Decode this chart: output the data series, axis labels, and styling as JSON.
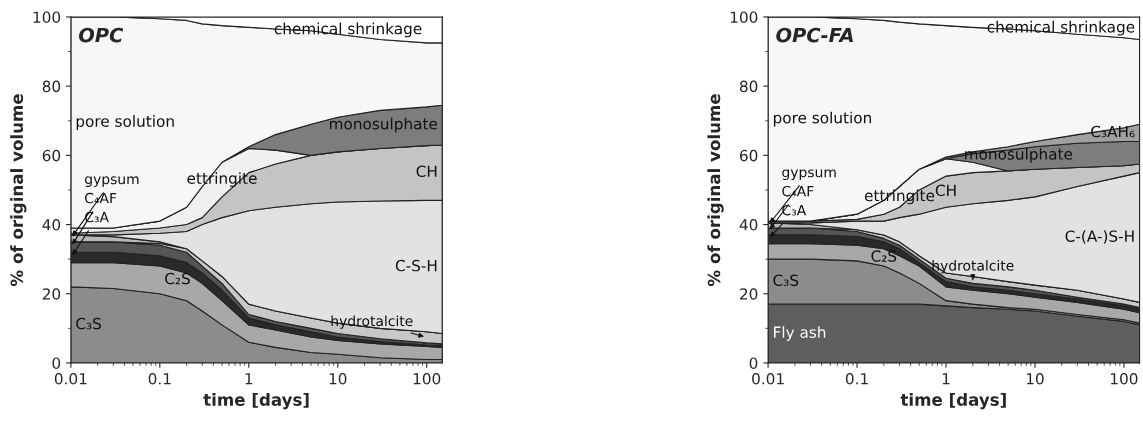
{
  "chart_data": [
    {
      "type": "area",
      "stacked": true,
      "title": "OPC",
      "xlabel": "time [days]",
      "ylabel": "% of original volume",
      "log": "x",
      "x": [
        0.01,
        0.03,
        0.1,
        0.2,
        0.3,
        0.5,
        1,
        2,
        5,
        10,
        30,
        100,
        150
      ],
      "xlim": [
        0.01,
        150
      ],
      "xticks": [
        0.01,
        0.1,
        1,
        10,
        100
      ],
      "ylim": [
        0,
        100
      ],
      "yticks": [
        0,
        20,
        40,
        60,
        80,
        100
      ],
      "series": [
        {
          "name": "C₃S",
          "color": "#8c8c8c",
          "values": [
            22,
            21.5,
            20,
            18,
            15,
            11,
            6,
            4.5,
            3,
            2.5,
            1.5,
            1,
            1
          ]
        },
        {
          "name": "C₂S",
          "color": "#a8a8a8",
          "values": [
            7,
            7.5,
            8,
            8,
            8,
            7,
            5,
            5,
            4.5,
            4,
            4,
            3.8,
            3.5
          ]
        },
        {
          "name": "C₃A",
          "color": "#2a2a2a",
          "values": [
            3,
            3,
            3,
            3,
            3,
            3,
            2,
            1.5,
            1.5,
            1,
            0.7,
            0.4,
            0.5
          ]
        },
        {
          "name": "C₄AF",
          "color": "#555555",
          "values": [
            3,
            3,
            3,
            3,
            2,
            2,
            1,
            1,
            1,
            1,
            0.8,
            0.6,
            0.5
          ]
        },
        {
          "name": "hydrotalcite",
          "color": "#c8c8c8",
          "values": [
            0,
            0,
            0.5,
            1,
            1.5,
            2,
            3,
            3,
            3,
            3,
            3,
            3.2,
            3
          ]
        },
        {
          "name": "gypsum",
          "color": "#b8b8b8",
          "values": [
            2,
            1.5,
            0.5,
            0,
            0,
            0,
            0,
            0,
            0,
            0,
            0,
            0,
            0
          ]
        },
        {
          "name": "C-S-H",
          "color": "#e2e2e2",
          "values": [
            0,
            0.5,
            2.5,
            5,
            10.5,
            17,
            27,
            30,
            33,
            35,
            36.8,
            38,
            38.5
          ]
        },
        {
          "name": "CH",
          "color": "#c4c4c4",
          "values": [
            0.5,
            1,
            1.5,
            2,
            2,
            6,
            11,
            12.5,
            14,
            14.5,
            15.2,
            15.8,
            16
          ]
        },
        {
          "name": "ettringite",
          "color": "#f0f0f0",
          "values": [
            1.5,
            1,
            2,
            5,
            9,
            10,
            7,
            4,
            0,
            0,
            0,
            0,
            0
          ]
        },
        {
          "name": "monosulphate",
          "color": "#7d7d7d",
          "values": [
            0,
            0,
            0,
            0,
            0,
            0,
            0.5,
            4.5,
            9,
            10,
            11,
            11.2,
            11.5
          ]
        },
        {
          "name": "pore solution",
          "color": "#f7f7f7",
          "values": [
            61,
            61,
            58.5,
            54,
            47,
            39.5,
            34.5,
            30.5,
            27,
            24,
            20.5,
            18.5,
            18
          ]
        },
        {
          "name": "chemical shrinkage",
          "color": "#ffffff",
          "values": [
            0,
            0,
            0.5,
            1,
            2,
            2.5,
            3,
            3.5,
            4,
            5,
            6.5,
            7.5,
            7.5
          ]
        }
      ]
    },
    {
      "type": "area",
      "stacked": true,
      "title": "OPC-FA",
      "xlabel": "time [days]",
      "ylabel": "% of original volume",
      "log": "x",
      "x": [
        0.01,
        0.03,
        0.1,
        0.2,
        0.3,
        0.5,
        1,
        2,
        5,
        10,
        30,
        100,
        150
      ],
      "xlim": [
        0.01,
        150
      ],
      "xticks": [
        0.01,
        0.1,
        1,
        10,
        100
      ],
      "ylim": [
        0,
        100
      ],
      "yticks": [
        0,
        20,
        40,
        60,
        80,
        100
      ],
      "series": [
        {
          "name": "Fly ash",
          "color": "#5e5e5e",
          "values": [
            17,
            17,
            17,
            17,
            17,
            17,
            16.5,
            16,
            15.5,
            15,
            13.5,
            12,
            11
          ]
        },
        {
          "name": "C₃S",
          "color": "#8c8c8c",
          "values": [
            13,
            13,
            12.5,
            11,
            9,
            6,
            1.5,
            1,
            0.5,
            0.5,
            0.5,
            0.5,
            0.5
          ]
        },
        {
          "name": "C₂S",
          "color": "#a8a8a8",
          "values": [
            4.5,
            4.5,
            4.5,
            5,
            5,
            5,
            4,
            4,
            4,
            3.5,
            3.5,
            3,
            3
          ]
        },
        {
          "name": "C₃A",
          "color": "#2a2a2a",
          "values": [
            2.5,
            2.5,
            2.5,
            2,
            2,
            1,
            1.5,
            1,
            1,
            1,
            1,
            1,
            1
          ]
        },
        {
          "name": "C₄AF",
          "color": "#555555",
          "values": [
            2,
            2,
            1.5,
            1,
            1,
            1,
            1,
            1,
            1,
            1,
            0.5,
            0.5,
            0.5
          ]
        },
        {
          "name": "hydrotalcite",
          "color": "#c8c8c8",
          "values": [
            0,
            0,
            0.5,
            1,
            1,
            1,
            1.5,
            2,
            1.5,
            1.5,
            2,
            1.5,
            1.5
          ]
        },
        {
          "name": "gypsum",
          "color": "#b8b8b8",
          "values": [
            1.5,
            1,
            0,
            0,
            0,
            0,
            0,
            0,
            0,
            0,
            0,
            0,
            0
          ]
        },
        {
          "name": "C-(A-)S-H",
          "color": "#e2e2e2",
          "values": [
            0,
            0.5,
            2.5,
            4,
            7,
            12,
            19,
            21,
            23.5,
            25.5,
            30,
            35.5,
            37.5
          ]
        },
        {
          "name": "CH",
          "color": "#c4c4c4",
          "values": [
            0.5,
            0.5,
            0.5,
            2,
            3,
            7,
            9,
            9,
            8.5,
            8,
            5.5,
            3,
            2.5
          ]
        },
        {
          "name": "ettringite",
          "color": "#f0f0f0",
          "values": [
            0,
            0,
            1.5,
            4,
            6,
            6,
            5,
            3,
            0,
            0,
            0,
            0,
            0
          ]
        },
        {
          "name": "monosulphate",
          "color": "#7d7d7d",
          "values": [
            0,
            0,
            0,
            0,
            0,
            0,
            0,
            2.5,
            6,
            6.5,
            7,
            7,
            6.5
          ]
        },
        {
          "name": "C₃AH₆",
          "color": "#a0a0a0",
          "values": [
            0,
            0,
            0,
            0,
            0,
            0,
            0.5,
            0.5,
            1,
            1.5,
            2.5,
            4,
            5
          ]
        },
        {
          "name": "pore solution",
          "color": "#f7f7f7",
          "values": [
            59,
            59,
            56.5,
            52,
            47.5,
            42,
            38,
            36,
            34,
            32,
            29,
            26,
            24.5
          ]
        },
        {
          "name": "chemical shrinkage",
          "color": "#ffffff",
          "values": [
            0,
            0,
            0.5,
            1,
            1.5,
            2,
            2.5,
            3,
            3.5,
            4,
            5,
            6,
            6.5
          ]
        }
      ]
    }
  ]
}
